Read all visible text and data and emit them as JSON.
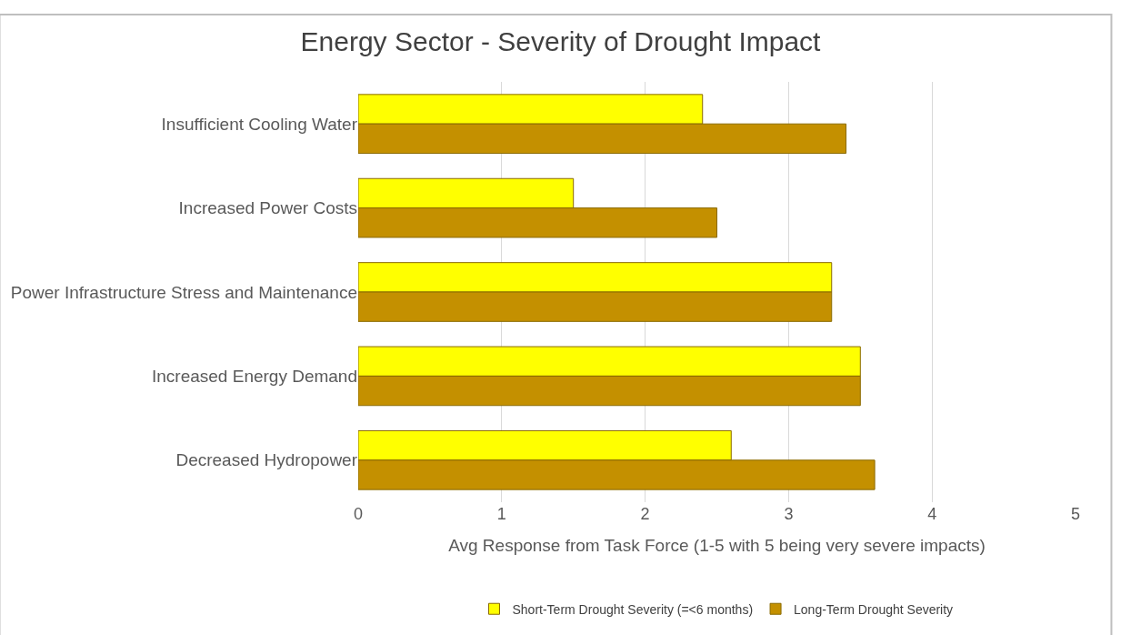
{
  "chart_data": {
    "type": "bar",
    "orientation": "horizontal",
    "title": "Energy Sector - Severity of Drought Impact",
    "xlabel": "Avg Response from Task Force (1-5 with 5 being very severe impacts)",
    "categories": [
      "Insufficient Cooling Water",
      "Increased Power Costs",
      "Power Infrastructure Stress and Maintenance",
      "Increased Energy Demand",
      "Decreased Hydropower"
    ],
    "series": [
      {
        "name": "Short-Term Drought Severity (=<6 months)",
        "color": "#ffff00",
        "values": [
          2.4,
          1.5,
          3.3,
          3.5,
          2.6
        ]
      },
      {
        "name": "Long-Term Drought Severity",
        "color": "#c49000",
        "values": [
          3.4,
          2.5,
          3.3,
          3.5,
          3.6
        ]
      }
    ],
    "xlim": [
      0,
      5
    ],
    "xticks": [
      0,
      1,
      2,
      3,
      4,
      5
    ],
    "grid": "x",
    "legend": "bottom"
  }
}
